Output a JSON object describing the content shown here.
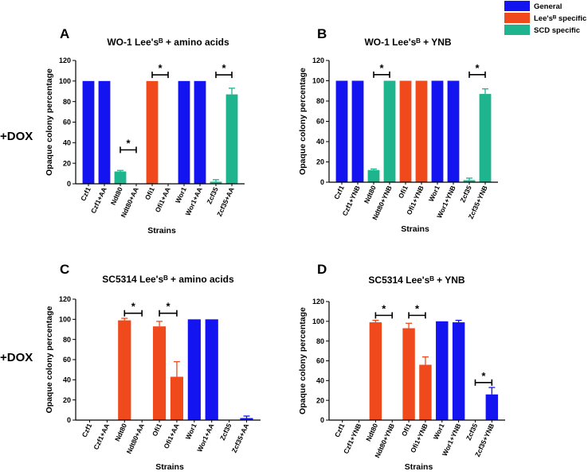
{
  "colors": {
    "general": "#1414f0",
    "lees": "#f04a1c",
    "scd": "#1db48e",
    "axis": "#000000"
  },
  "legend": [
    {
      "label": "General",
      "color_key": "general"
    },
    {
      "label": "Lee'sᴮ specific",
      "color_key": "lees"
    },
    {
      "label": "SCD specific",
      "color_key": "scd"
    }
  ],
  "row_labels": [
    "+DOX",
    "+DOX"
  ],
  "chart_data": [
    {
      "type": "bar",
      "panel_letter": "A",
      "title": "WO-1 Lee'sᴮ + amino acids",
      "xlabel": "Strains",
      "ylabel": "Opaque colony percentage",
      "ylim": [
        0,
        120
      ],
      "yticks": [
        0,
        20,
        40,
        60,
        80,
        100,
        120
      ],
      "categories": [
        "Czf1",
        "Czf1+AA",
        "Ndt80",
        "Ndt80+AA",
        "Ofi1",
        "Ofi1+AA",
        "Wor1",
        "Wor1+AA",
        "Zcf35",
        "Zcf35+AA"
      ],
      "values": [
        100,
        100,
        12,
        0,
        100,
        0,
        100,
        100,
        2,
        87
      ],
      "errors": [
        0,
        0,
        1,
        0,
        0,
        0,
        0,
        0,
        2,
        6
      ],
      "groups": [
        "general",
        "general",
        "scd",
        "scd",
        "lees",
        "lees",
        "general",
        "general",
        "scd",
        "scd"
      ],
      "significance": [
        {
          "from": 2,
          "to": 3,
          "y": 33,
          "label": "*"
        },
        {
          "from": 4,
          "to": 5,
          "y": 106,
          "label": "*"
        },
        {
          "from": 8,
          "to": 9,
          "y": 106,
          "label": "*"
        }
      ]
    },
    {
      "type": "bar",
      "panel_letter": "B",
      "title": "WO-1 Lee'sᴮ + YNB",
      "xlabel": "Strains",
      "ylabel": "Opaque colony percentage",
      "ylim": [
        0,
        120
      ],
      "yticks": [
        0,
        20,
        40,
        60,
        80,
        100,
        120
      ],
      "categories": [
        "Czf1",
        "Czf1+YNB",
        "Ndt80",
        "Ndt80+YNB",
        "Ofi1",
        "Ofi1+YNB",
        "Wor1",
        "Wor1+YNB",
        "Zcf35",
        "Zcf35+YNB"
      ],
      "values": [
        100,
        100,
        12,
        100,
        100,
        100,
        100,
        100,
        2,
        87
      ],
      "errors": [
        0,
        0,
        1,
        0,
        0,
        0,
        0,
        0,
        2,
        5
      ],
      "groups": [
        "general",
        "general",
        "scd",
        "scd",
        "lees",
        "lees",
        "general",
        "general",
        "scd",
        "scd"
      ],
      "significance": [
        {
          "from": 2,
          "to": 3,
          "y": 106,
          "label": "*"
        },
        {
          "from": 8,
          "to": 9,
          "y": 106,
          "label": "*"
        }
      ]
    },
    {
      "type": "bar",
      "panel_letter": "C",
      "title": "SC5314 Lee'sᴮ + amino acids",
      "xlabel": "Strains",
      "ylabel": "Opaque colony percentage",
      "ylim": [
        0,
        120
      ],
      "yticks": [
        0,
        20,
        40,
        60,
        80,
        100,
        120
      ],
      "categories": [
        "Czf1",
        "Czf1+AA",
        "Ndt80",
        "Ndt80+AA",
        "Ofi1",
        "Ofi1+AA",
        "Wor1",
        "Wor1+AA",
        "Zcf35",
        "Zcf35+AA"
      ],
      "values": [
        0,
        0,
        99,
        0,
        93,
        43,
        100,
        100,
        0,
        2
      ],
      "errors": [
        0,
        0,
        2,
        0,
        5,
        15,
        0,
        0,
        0,
        2
      ],
      "groups": [
        "general",
        "general",
        "lees",
        "lees",
        "lees",
        "lees",
        "general",
        "general",
        "general",
        "general"
      ],
      "significance": [
        {
          "from": 2,
          "to": 3,
          "y": 106,
          "label": "*"
        },
        {
          "from": 4,
          "to": 5,
          "y": 106,
          "label": "*"
        }
      ]
    },
    {
      "type": "bar",
      "panel_letter": "D",
      "title": "SC5314 Lee'sᴮ + YNB",
      "xlabel": "Strains",
      "ylabel": "Opaque colony percentage",
      "ylim": [
        0,
        120
      ],
      "yticks": [
        0,
        20,
        40,
        60,
        80,
        100,
        120
      ],
      "categories": [
        "Czf1",
        "Czf1+YNB",
        "Ndt80",
        "Ndt80+YNB",
        "Ofi1",
        "Ofi1+YNB",
        "Wor1",
        "Wor1+YNB",
        "Zcf35",
        "Zcf35+YNB"
      ],
      "values": [
        0,
        0,
        99,
        0,
        93,
        56,
        100,
        99,
        0,
        26
      ],
      "errors": [
        0,
        0,
        2,
        0,
        5,
        8,
        0,
        2,
        0,
        7
      ],
      "groups": [
        "general",
        "general",
        "lees",
        "lees",
        "lees",
        "lees",
        "general",
        "general",
        "general",
        "general"
      ],
      "significance": [
        {
          "from": 2,
          "to": 3,
          "y": 106,
          "label": "*"
        },
        {
          "from": 4,
          "to": 5,
          "y": 106,
          "label": "*"
        },
        {
          "from": 8,
          "to": 9,
          "y": 38,
          "label": "*"
        }
      ]
    }
  ]
}
